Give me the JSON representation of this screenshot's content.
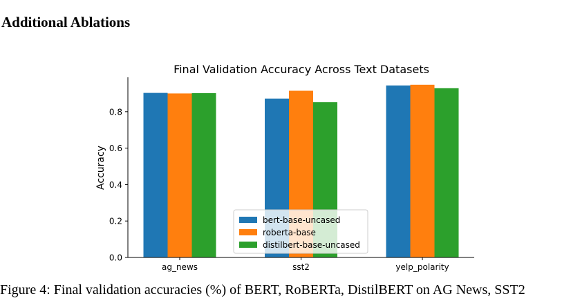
{
  "section_heading": "Additional Ablations",
  "caption_fragment": "Figure 4: Final validation accuracies (%) of BERT, RoBERTa, DistilBERT on AG News, SST2",
  "chart_data": {
    "type": "bar",
    "title": "Final Validation Accuracy Across Text Datasets",
    "xlabel": "",
    "ylabel": "Accuracy",
    "categories": [
      "ag_news",
      "sst2",
      "yelp_polarity"
    ],
    "series": [
      {
        "name": "bert-base-uncased",
        "color": "#1f77b4",
        "values": [
          0.903,
          0.872,
          0.944
        ]
      },
      {
        "name": "roberta-base",
        "color": "#ff7f0e",
        "values": [
          0.9,
          0.915,
          0.948
        ]
      },
      {
        "name": "distilbert-base-uncased",
        "color": "#2ca02c",
        "values": [
          0.902,
          0.852,
          0.929
        ]
      }
    ],
    "ylim": [
      0,
      0.985
    ],
    "yticks": [
      "0.0",
      "0.2",
      "0.4",
      "0.6",
      "0.8"
    ],
    "ytick_values": [
      0.0,
      0.2,
      0.4,
      0.6,
      0.8
    ],
    "grid": false,
    "legend_position": "lower-center"
  }
}
